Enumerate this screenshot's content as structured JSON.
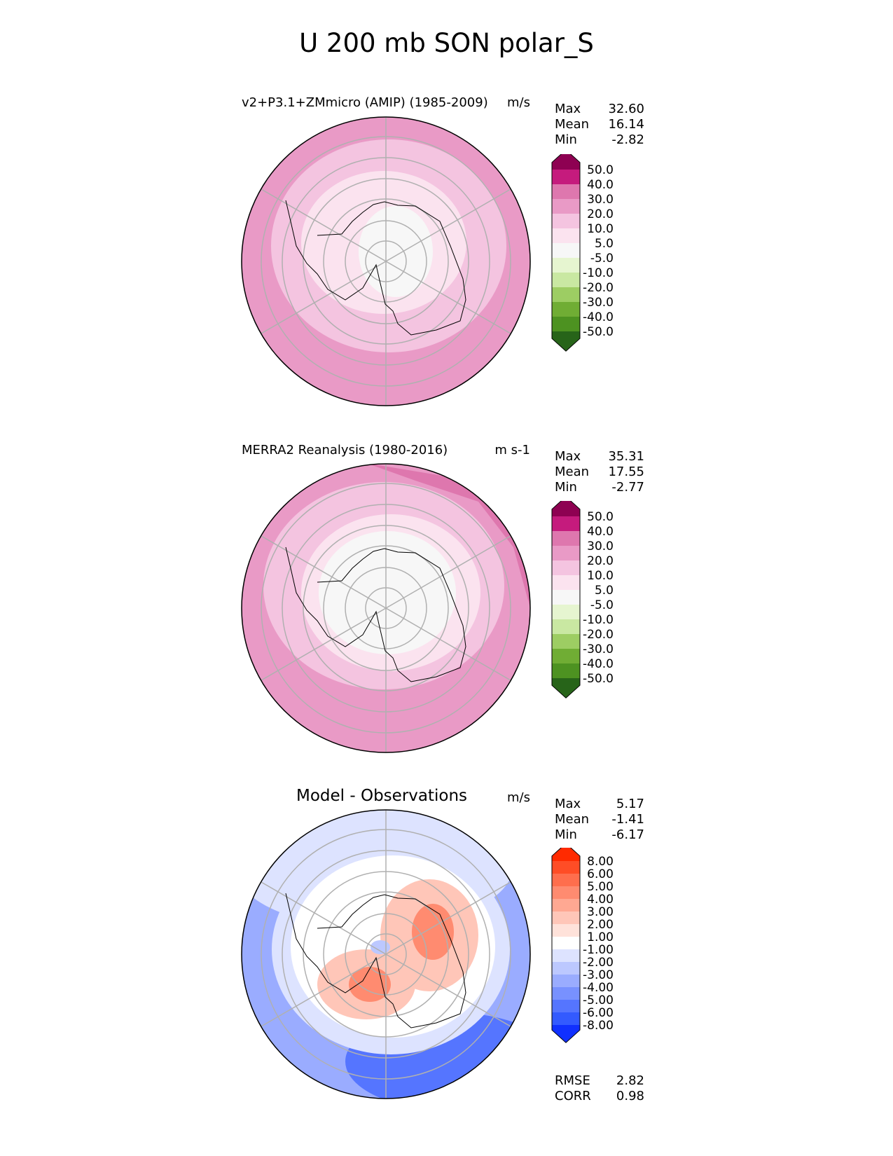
{
  "title": "U 200 mb SON polar_S",
  "panels": [
    {
      "title": "v2+P3.1+ZMmicro (AMIP) (1985-2009)",
      "units": "m/s",
      "stats": {
        "max_label": "Max",
        "max": "32.60",
        "mean_label": "Mean",
        "mean": "16.14",
        "min_label": "Min",
        "min": "-2.82"
      }
    },
    {
      "title": "MERRA2 Reanalysis (1980-2016)",
      "units": "m s-1",
      "stats": {
        "max_label": "Max",
        "max": "35.31",
        "mean_label": "Mean",
        "mean": "17.55",
        "min_label": "Min",
        "min": "-2.77"
      }
    },
    {
      "title": "Model - Observations",
      "units": "m/s",
      "stats": {
        "max_label": "Max",
        "max": "5.17",
        "mean_label": "Mean",
        "mean": "-1.41",
        "min_label": "Min",
        "min": "-6.17"
      },
      "metrics": {
        "rmse_label": "RMSE",
        "rmse": "2.82",
        "corr_label": "CORR",
        "corr": "0.98"
      }
    }
  ],
  "colorbars": {
    "field": {
      "labels": [
        "50.0",
        "40.0",
        "30.0",
        "20.0",
        "10.0",
        "5.0",
        "-5.0",
        "-10.0",
        "-20.0",
        "-30.0",
        "-40.0",
        "-50.0"
      ],
      "colors": [
        "#8e0152",
        "#c51b7d",
        "#de77ae",
        "#e99ac6",
        "#f4c4e0",
        "#fbe3ef",
        "#f7f7f7",
        "#e6f5d0",
        "#c9e8a2",
        "#9dcd63",
        "#70ad34",
        "#4d9221",
        "#276419"
      ]
    },
    "diff": {
      "labels": [
        "8.00",
        "6.00",
        "5.00",
        "4.00",
        "3.00",
        "2.00",
        "1.00",
        "-1.00",
        "-2.00",
        "-3.00",
        "-4.00",
        "-5.00",
        "-6.00",
        "-8.00"
      ],
      "colors": [
        "#ff2a00",
        "#ff4d26",
        "#ff6e4d",
        "#ff8b70",
        "#ffa892",
        "#ffc6b8",
        "#ffe2da",
        "#ffffff",
        "#dde3ff",
        "#bcc8ff",
        "#9aacff",
        "#7891ff",
        "#5575ff",
        "#335aff",
        "#1030ff"
      ]
    }
  },
  "colors": {
    "pink_outer": "#e99ac6",
    "pink_mid": "#f4c4e0",
    "pink_inner": "#fbe3ef",
    "pink_dark": "#de77ae",
    "neutral": "#f7f7f7",
    "blue_light": "#dde3ff",
    "blue_mid": "#9aacff",
    "blue_dark": "#5575ff",
    "red_light": "#ffc6b8",
    "red_mid": "#ff8b70",
    "grid": "#b0b0b0"
  }
}
